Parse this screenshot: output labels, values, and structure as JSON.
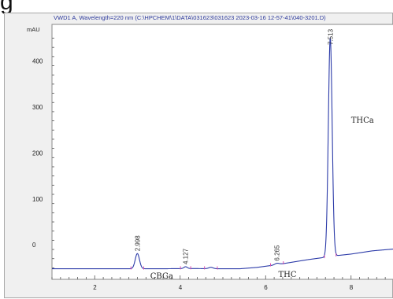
{
  "page": {
    "title_fragment": "g"
  },
  "colors": {
    "trace": "#2b3aa8",
    "baseline_marker": "#d84fb0",
    "frame_bg": "#f0f0f0",
    "plot_bg": "#ffffff",
    "header_text": "#2d3a9c"
  },
  "chart_data": {
    "type": "line",
    "title": "VWD1 A, Wavelength=220 nm (C:\\HPCHEM\\1\\DATA\\031623\\031623 2023-03-16 12-57-41\\040-3201.D)",
    "ylabel": "mAU",
    "xlabel": "",
    "xlim": [
      1.0,
      9.0
    ],
    "ylim": [
      -75,
      480
    ],
    "x_ticks": [
      2,
      4,
      6,
      8
    ],
    "y_ticks": [
      0,
      100,
      200,
      300,
      400
    ],
    "grid": false,
    "baseline": [
      [
        1.0,
        -52
      ],
      [
        3.6,
        -52
      ],
      [
        4.2,
        -51.5
      ],
      [
        5.0,
        -52
      ],
      [
        5.4,
        -52
      ],
      [
        5.8,
        -49
      ],
      [
        6.2,
        -44
      ],
      [
        6.6,
        -38
      ],
      [
        7.0,
        -32
      ],
      [
        7.4,
        -27
      ],
      [
        7.6,
        -24
      ],
      [
        8.0,
        -20
      ],
      [
        8.5,
        -13
      ],
      [
        9.0,
        -9
      ]
    ],
    "peaks": [
      {
        "rt": 2.998,
        "height": 33,
        "width": 0.05
      },
      {
        "rt": 4.127,
        "height": 4,
        "width": 0.04
      },
      {
        "rt": 4.72,
        "height": 3,
        "width": 0.05
      },
      {
        "rt": 6.265,
        "height": 3,
        "width": 0.05
      },
      {
        "rt": 7.513,
        "height": 475,
        "width": 0.045
      }
    ],
    "peak_labels": [
      "2.998",
      "4.127",
      "6.265",
      "7.513"
    ],
    "compound_labels": [
      {
        "text": "CBGa",
        "x": 3.3,
        "y": -73
      },
      {
        "text": "THC",
        "x": 6.3,
        "y": -70
      },
      {
        "text": "THCa",
        "x": 8.0,
        "y": 266
      }
    ]
  }
}
